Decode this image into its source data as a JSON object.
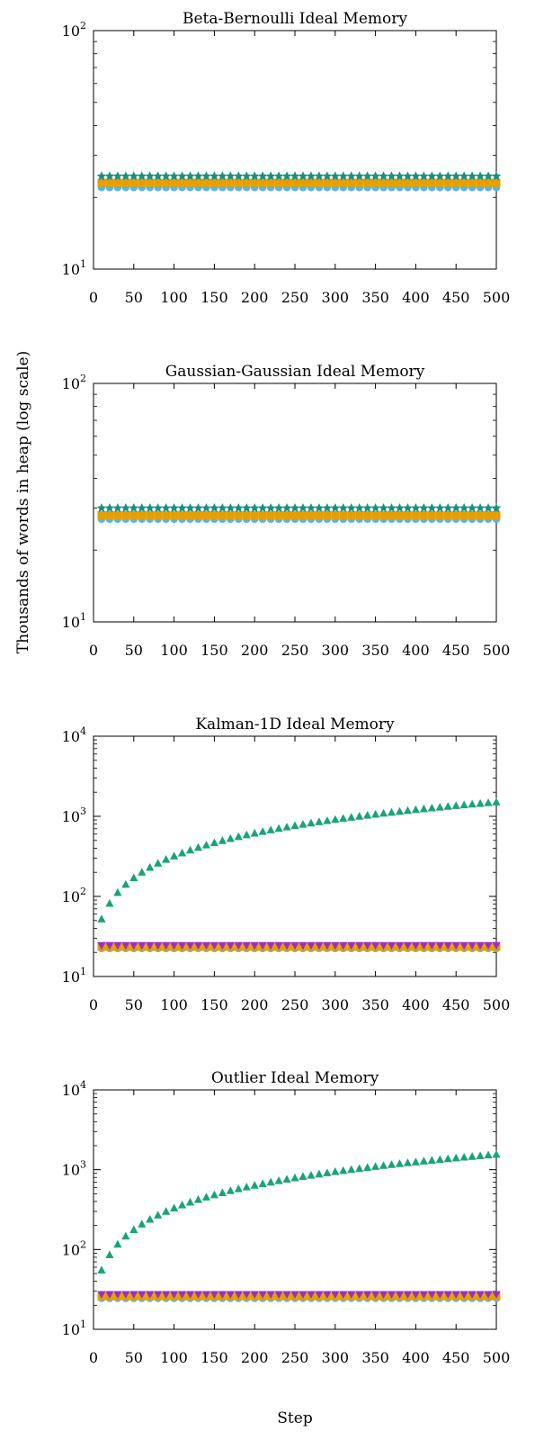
{
  "figure": {
    "ylabel": "Thousands of words in heap (log scale)",
    "xlabel": "Step"
  },
  "chart_data": [
    {
      "type": "scatter",
      "title": "Beta-Bernoulli Ideal Memory",
      "xlim": [
        0,
        500
      ],
      "ylim": [
        10,
        100
      ],
      "yscale": "log",
      "xticks": [
        "0",
        "50",
        "100",
        "150",
        "200",
        "250",
        "300",
        "350",
        "400",
        "450",
        "500"
      ],
      "yticks": [
        {
          "base": "10",
          "exp": "1",
          "value": 10
        },
        {
          "base": "10",
          "exp": "2",
          "value": 100
        }
      ],
      "grid": false,
      "legend": "none",
      "series": [
        {
          "marker": "circle",
          "color": "#56b4e9",
          "x": [
            10,
            500
          ],
          "y": [
            22,
            22
          ],
          "step": 10
        },
        {
          "marker": "square",
          "color": "#e69f00",
          "x": [
            10,
            500
          ],
          "y": [
            23,
            23
          ],
          "step": 10
        },
        {
          "marker": "star",
          "color": "#1a8f80",
          "x": [
            10,
            500
          ],
          "y": [
            24.5,
            24.5
          ],
          "step": 10
        }
      ]
    },
    {
      "type": "scatter",
      "title": "Gaussian-Gaussian Ideal Memory",
      "xlim": [
        0,
        500
      ],
      "ylim": [
        10,
        100
      ],
      "yscale": "log",
      "xticks": [
        "0",
        "50",
        "100",
        "150",
        "200",
        "250",
        "300",
        "350",
        "400",
        "450",
        "500"
      ],
      "yticks": [
        {
          "base": "10",
          "exp": "1",
          "value": 10
        },
        {
          "base": "10",
          "exp": "2",
          "value": 100
        }
      ],
      "grid": false,
      "legend": "none",
      "series": [
        {
          "marker": "circle",
          "color": "#56b4e9",
          "x": [
            10,
            500
          ],
          "y": [
            27,
            27
          ],
          "step": 10
        },
        {
          "marker": "square",
          "color": "#e69f00",
          "x": [
            10,
            500
          ],
          "y": [
            28,
            28
          ],
          "step": 10
        },
        {
          "marker": "star",
          "color": "#1a8f80",
          "x": [
            10,
            500
          ],
          "y": [
            30,
            30
          ],
          "step": 10
        }
      ]
    },
    {
      "type": "scatter",
      "title": "Kalman-1D Ideal Memory",
      "xlim": [
        0,
        500
      ],
      "ylim": [
        10,
        10000
      ],
      "yscale": "log",
      "xticks": [
        "0",
        "50",
        "100",
        "150",
        "200",
        "250",
        "300",
        "350",
        "400",
        "450",
        "500"
      ],
      "yticks": [
        {
          "base": "10",
          "exp": "1",
          "value": 10
        },
        {
          "base": "10",
          "exp": "2",
          "value": 100
        },
        {
          "base": "10",
          "exp": "3",
          "value": 1000
        },
        {
          "base": "10",
          "exp": "4",
          "value": 10000
        }
      ],
      "grid": false,
      "legend": "none",
      "series": [
        {
          "marker": "circle",
          "color": "#56b4e9",
          "x": [
            10,
            500
          ],
          "y": [
            22.5,
            22.5
          ],
          "step": 10
        },
        {
          "marker": "square",
          "color": "#e69f00",
          "x": [
            10,
            500
          ],
          "y": [
            23.5,
            23.5
          ],
          "step": 10
        },
        {
          "marker": "triangle-down",
          "color": "#9b2fc4",
          "x": [
            10,
            500
          ],
          "y": [
            24.5,
            24.5
          ],
          "step": 10
        },
        {
          "marker": "triangle-up",
          "color": "#1aa37a",
          "x": [
            10,
            500
          ],
          "y": [
            52,
            1500
          ],
          "step": 10,
          "growth": "linear-in-step"
        }
      ]
    },
    {
      "type": "scatter",
      "title": "Outlier Ideal Memory",
      "xlim": [
        0,
        500
      ],
      "ylim": [
        10,
        10000
      ],
      "yscale": "log",
      "xticks": [
        "0",
        "50",
        "100",
        "150",
        "200",
        "250",
        "300",
        "350",
        "400",
        "450",
        "500"
      ],
      "yticks": [
        {
          "base": "10",
          "exp": "1",
          "value": 10
        },
        {
          "base": "10",
          "exp": "2",
          "value": 100
        },
        {
          "base": "10",
          "exp": "3",
          "value": 1000
        },
        {
          "base": "10",
          "exp": "4",
          "value": 10000
        }
      ],
      "grid": false,
      "legend": "none",
      "series": [
        {
          "marker": "circle",
          "color": "#56b4e9",
          "x": [
            10,
            500
          ],
          "y": [
            24.5,
            24.5
          ],
          "step": 10
        },
        {
          "marker": "square",
          "color": "#e69f00",
          "x": [
            10,
            500
          ],
          "y": [
            26,
            26
          ],
          "step": 10
        },
        {
          "marker": "triangle-down",
          "color": "#9b2fc4",
          "x": [
            10,
            500
          ],
          "y": [
            27.5,
            27.5
          ],
          "step": 10
        },
        {
          "marker": "triangle-up",
          "color": "#1aa37a",
          "x": [
            10,
            500
          ],
          "y": [
            55,
            1550
          ],
          "step": 10,
          "growth": "linear-in-step"
        }
      ]
    }
  ]
}
